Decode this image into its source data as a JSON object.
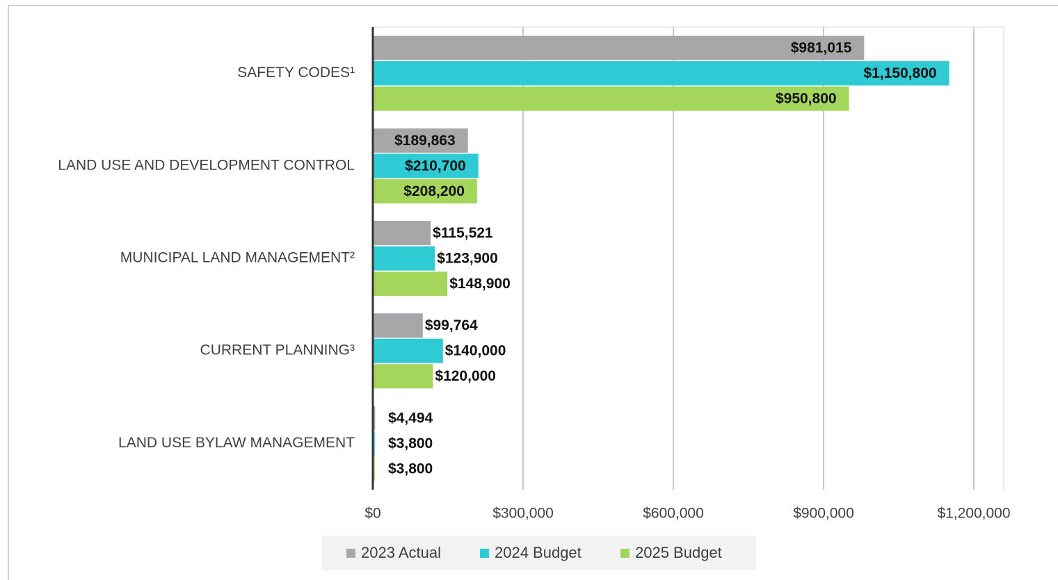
{
  "chart_data": {
    "type": "barh",
    "categories": [
      "SAFETY CODES¹",
      "LAND USE AND DEVELOPMENT CONTROL",
      "MUNICIPAL LAND MANAGEMENT²",
      "CURRENT PLANNING³",
      "LAND USE BYLAW MANAGEMENT"
    ],
    "series": [
      {
        "name": "2023 Actual",
        "color": "#a7a7a9",
        "values": [
          981015,
          189863,
          115521,
          99764,
          4494
        ],
        "value_labels": [
          "$981,015",
          "$189,863",
          "$115,521",
          "$99,764",
          "$4,494"
        ]
      },
      {
        "name": "2024 Budget",
        "color": "#2ecbd4",
        "values": [
          1150800,
          210700,
          123900,
          140000,
          3800
        ],
        "value_labels": [
          "$1,150,800",
          "$210,700",
          "$123,900",
          "$140,000",
          "$3,800"
        ]
      },
      {
        "name": "2025 Budget",
        "color": "#a5d65c",
        "values": [
          950800,
          208200,
          148900,
          120000,
          3800
        ],
        "value_labels": [
          "$950,800",
          "$208,200",
          "$148,900",
          "$120,000",
          "$3,800"
        ]
      }
    ],
    "xlim": [
      0,
      1250000
    ],
    "xticks": [
      {
        "value": 0,
        "label": "$0"
      },
      {
        "value": 300000,
        "label": "$300,000"
      },
      {
        "value": 600000,
        "label": "$600,000"
      },
      {
        "value": 900000,
        "label": "$900,000"
      },
      {
        "value": 1200000,
        "label": "$1,200,000"
      }
    ],
    "grid": true,
    "legend": "bottom"
  }
}
